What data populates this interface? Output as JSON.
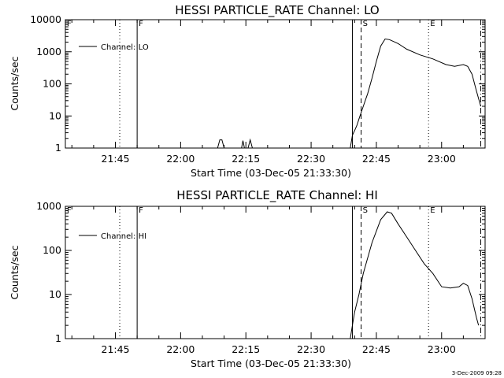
{
  "chart_data": [
    {
      "type": "line",
      "title": "HESSI PARTICLE_RATE Channel: LO",
      "xlabel": "Start Time (03-Dec-05 21:33:30)",
      "ylabel": "Counts/sec",
      "yscale": "log",
      "ylim": [
        1,
        10000
      ],
      "yticks": [
        1,
        10,
        100,
        1000,
        10000
      ],
      "ytick_labels": [
        "1",
        "10",
        "100",
        "1000",
        "10000"
      ],
      "xlim": [
        "21:33:30",
        "23:10:00"
      ],
      "xticks": [
        "21:45",
        "22:00",
        "22:15",
        "22:30",
        "22:45",
        "23:00"
      ],
      "legend": "Channel: LO",
      "legend_position": "top-left",
      "markers": [
        {
          "label": "F",
          "time": "21:33:30",
          "style": "none"
        },
        {
          "label": "",
          "time": "21:46:00",
          "style": "dotted"
        },
        {
          "label": "F",
          "time": "21:50:00",
          "style": "solid"
        },
        {
          "label": "",
          "time": "22:39:30",
          "style": "solid"
        },
        {
          "label": "S",
          "time": "22:41:30",
          "style": "dashed"
        },
        {
          "label": "E",
          "time": "22:57:00",
          "style": "dotted"
        },
        {
          "label": "",
          "time": "23:09:00",
          "style": "dashdot"
        }
      ],
      "series": [
        {
          "name": "Channel: LO",
          "x": [
            "22:08:30",
            "22:09:00",
            "22:09:30",
            "22:10:00",
            "22:14:00",
            "22:14:20",
            "22:14:40",
            "22:15:30",
            "22:16:00",
            "22:16:30",
            "22:39:00",
            "22:39:30",
            "22:40:00",
            "22:40:30",
            "22:41:00",
            "22:42:00",
            "22:43:00",
            "22:44:00",
            "22:45:00",
            "22:46:00",
            "22:47:00",
            "22:48:00",
            "22:50:00",
            "22:52:00",
            "22:55:00",
            "22:58:00",
            "23:01:00",
            "23:03:00",
            "23:05:00",
            "23:06:00",
            "23:07:00",
            "23:08:00",
            "23:09:00"
          ],
          "y": [
            1,
            1.8,
            1.8,
            1,
            1,
            1.7,
            1,
            1,
            1.8,
            1,
            1,
            2.5,
            3.5,
            5,
            8,
            20,
            50,
            150,
            500,
            1500,
            2500,
            2400,
            1800,
            1200,
            800,
            600,
            400,
            350,
            400,
            350,
            200,
            60,
            20
          ]
        }
      ]
    },
    {
      "type": "line",
      "title": "HESSI PARTICLE_RATE Channel: HI",
      "xlabel": "Start Time (03-Dec-05 21:33:30)",
      "ylabel": "Counts/sec",
      "yscale": "log",
      "ylim": [
        1,
        1000
      ],
      "yticks": [
        1,
        10,
        100,
        1000
      ],
      "ytick_labels": [
        "1",
        "10",
        "100",
        "1000"
      ],
      "xlim": [
        "21:33:30",
        "23:10:00"
      ],
      "xticks": [
        "21:45",
        "22:00",
        "22:15",
        "22:30",
        "22:45",
        "23:00"
      ],
      "legend": "Channel: HI",
      "legend_position": "top-left",
      "markers": [
        {
          "label": "F",
          "time": "21:33:30",
          "style": "none"
        },
        {
          "label": "",
          "time": "21:46:00",
          "style": "dotted"
        },
        {
          "label": "F",
          "time": "21:50:00",
          "style": "solid"
        },
        {
          "label": "",
          "time": "22:39:30",
          "style": "solid"
        },
        {
          "label": "S",
          "time": "22:41:30",
          "style": "dashed"
        },
        {
          "label": "E",
          "time": "22:57:00",
          "style": "dotted"
        },
        {
          "label": "",
          "time": "23:09:00",
          "style": "dashdot"
        }
      ],
      "series": [
        {
          "name": "Channel: HI",
          "x": [
            "22:39:00",
            "22:39:30",
            "22:40:00",
            "22:41:00",
            "22:42:00",
            "22:44:00",
            "22:46:00",
            "22:47:30",
            "22:48:30",
            "22:50:00",
            "22:52:00",
            "22:54:00",
            "22:56:00",
            "22:58:00",
            "23:00:00",
            "23:02:00",
            "23:04:00",
            "23:05:00",
            "23:06:00",
            "23:07:00",
            "23:08:00",
            "23:08:30"
          ],
          "y": [
            1,
            2,
            4,
            10,
            30,
            150,
            500,
            750,
            700,
            400,
            200,
            100,
            50,
            30,
            15,
            14,
            15,
            18,
            16,
            8,
            3,
            2
          ]
        }
      ]
    }
  ],
  "timestamp": "3-Dec-2009 09:28",
  "colors": {
    "background": "#ffffff",
    "foreground": "#000000"
  }
}
